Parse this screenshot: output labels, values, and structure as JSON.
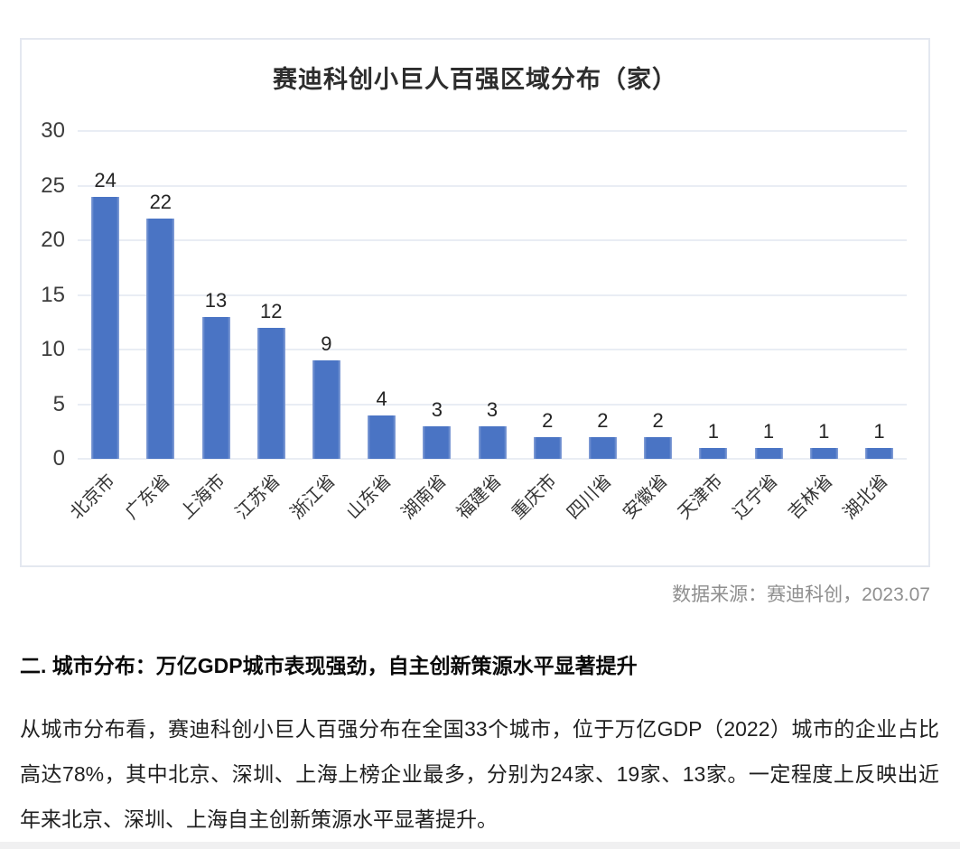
{
  "chart_data": {
    "type": "bar",
    "title": "赛迪科创小巨人百强区域分布（家）",
    "categories": [
      "北京市",
      "广东省",
      "上海市",
      "江苏省",
      "浙江省",
      "山东省",
      "湖南省",
      "福建省",
      "重庆市",
      "四川省",
      "安徽省",
      "天津市",
      "辽宁省",
      "吉林省",
      "湖北省"
    ],
    "values": [
      24,
      22,
      13,
      12,
      9,
      4,
      3,
      3,
      2,
      2,
      2,
      1,
      1,
      1,
      1
    ],
    "xlabel": "",
    "ylabel": "",
    "ylim": [
      0,
      30
    ],
    "yticks": [
      0,
      5,
      10,
      15,
      20,
      25,
      30
    ],
    "grid": true,
    "legend_position": "none",
    "bar_color": "#4a74c4",
    "bar_edge_color": "#8aa3d8",
    "data_labels_shown": true
  },
  "source_note": "数据来源：赛迪科创，2023.07",
  "section_heading": "二. 城市分布：万亿GDP城市表现强劲，自主创新策源水平显著提升",
  "body_paragraph": "从城市分布看，赛迪科创小巨人百强分布在全国33个城市，位于万亿GDP（2022）城市的企业占比高达78%，其中北京、深圳、上海上榜企业最多，分别为24家、19家、13家。一定程度上反映出近年来北京、深圳、上海自主创新策源水平显著提升。"
}
